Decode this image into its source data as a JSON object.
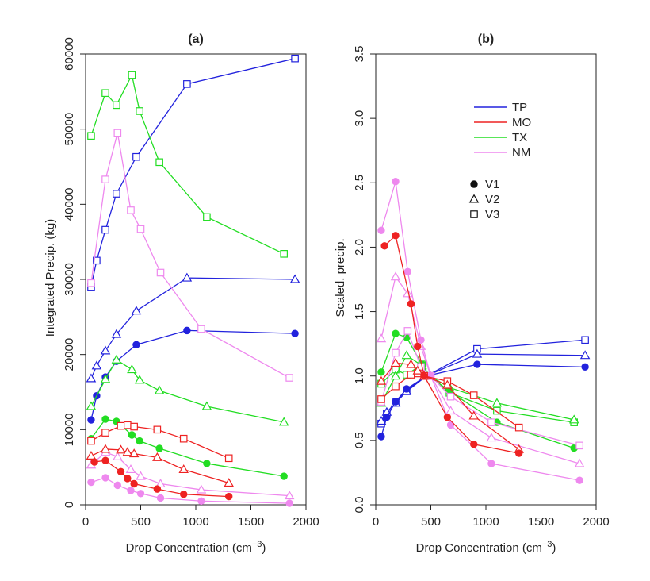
{
  "chart_data": [
    {
      "type": "line",
      "title": "(a)",
      "xlabel": "Drop Concentration (cm",
      "xlabel_sup": "−3",
      "xlabel_end": ")",
      "ylabel": "Integrated Precip. (kg)",
      "xlim": [
        0,
        2000
      ],
      "ylim": [
        0,
        60000
      ],
      "xticks": [
        0,
        500,
        1000,
        1500,
        2000
      ],
      "yticks": [
        0,
        10000,
        20000,
        30000,
        40000,
        50000,
        60000
      ],
      "grid": false,
      "series": [
        {
          "name": "TP",
          "version": "V3",
          "color": "#2222dd",
          "marker": "square",
          "x": [
            50,
            100,
            180,
            280,
            460,
            920,
            1900
          ],
          "y": [
            29000,
            32500,
            36600,
            41400,
            46300,
            56000,
            59400
          ]
        },
        {
          "name": "TP",
          "version": "V2",
          "color": "#2222dd",
          "marker": "triangle",
          "x": [
            50,
            100,
            180,
            280,
            460,
            920,
            1900
          ],
          "y": [
            16800,
            18500,
            20500,
            22700,
            25800,
            30200,
            30000
          ]
        },
        {
          "name": "TP",
          "version": "V1",
          "color": "#2222dd",
          "marker": "circle",
          "x": [
            50,
            100,
            180,
            280,
            460,
            920,
            1900
          ],
          "y": [
            11300,
            14500,
            17000,
            19100,
            21300,
            23200,
            22800
          ]
        },
        {
          "name": "TX",
          "version": "V3",
          "color": "#22dd22",
          "marker": "square",
          "x": [
            50,
            180,
            280,
            420,
            490,
            670,
            1100,
            1800
          ],
          "y": [
            49100,
            54800,
            53200,
            57200,
            52400,
            45600,
            38300,
            33400
          ]
        },
        {
          "name": "TX",
          "version": "V2",
          "color": "#22dd22",
          "marker": "triangle",
          "x": [
            50,
            180,
            280,
            420,
            490,
            670,
            1100,
            1800
          ],
          "y": [
            13100,
            16700,
            19300,
            18000,
            16600,
            15200,
            13100,
            11000
          ]
        },
        {
          "name": "TX",
          "version": "V1",
          "color": "#22dd22",
          "marker": "circle",
          "x": [
            50,
            180,
            280,
            420,
            490,
            670,
            1100,
            1800
          ],
          "y": [
            8800,
            11400,
            11100,
            9300,
            8500,
            7500,
            5500,
            3800
          ]
        },
        {
          "name": "NM",
          "version": "V3",
          "color": "#ee88ee",
          "marker": "square",
          "x": [
            50,
            180,
            290,
            410,
            500,
            680,
            1050,
            1850
          ],
          "y": [
            29500,
            43300,
            49500,
            39200,
            36700,
            30900,
            23400,
            16900
          ]
        },
        {
          "name": "NM",
          "version": "V2",
          "color": "#ee88ee",
          "marker": "triangle",
          "x": [
            50,
            180,
            290,
            410,
            500,
            680,
            1050,
            1850
          ],
          "y": [
            5300,
            7000,
            6400,
            4700,
            3800,
            2800,
            2000,
            1200
          ]
        },
        {
          "name": "NM",
          "version": "V1",
          "color": "#ee88ee",
          "marker": "circle",
          "x": [
            50,
            180,
            290,
            410,
            500,
            680,
            1050,
            1850
          ],
          "y": [
            3000,
            3600,
            2600,
            1900,
            1500,
            900,
            500,
            200
          ]
        },
        {
          "name": "MO",
          "version": "V3",
          "color": "#ee2222",
          "marker": "square",
          "x": [
            50,
            180,
            320,
            380,
            440,
            650,
            890,
            1300
          ],
          "y": [
            8500,
            9600,
            10500,
            10600,
            10400,
            10000,
            8800,
            6200
          ]
        },
        {
          "name": "MO",
          "version": "V2",
          "color": "#ee2222",
          "marker": "triangle",
          "x": [
            50,
            180,
            320,
            380,
            440,
            650,
            890,
            1300
          ],
          "y": [
            6500,
            7400,
            7300,
            7000,
            6800,
            6300,
            4700,
            2900
          ]
        },
        {
          "name": "MO",
          "version": "V1",
          "color": "#ee2222",
          "marker": "circle",
          "x": [
            80,
            180,
            320,
            380,
            440,
            650,
            890,
            1300
          ],
          "y": [
            5700,
            5900,
            4400,
            3500,
            2800,
            2100,
            1400,
            1100
          ]
        }
      ]
    },
    {
      "type": "line",
      "title": "(b)",
      "xlabel": "Drop Concentration (cm",
      "xlabel_sup": "−3",
      "xlabel_end": ")",
      "ylabel": "Scaled. precip.",
      "xlim": [
        0,
        2000
      ],
      "ylim": [
        0,
        3.5
      ],
      "xticks": [
        0,
        500,
        1000,
        1500,
        2000
      ],
      "yticks": [
        0.0,
        0.5,
        1.0,
        1.5,
        2.0,
        2.5,
        3.0,
        3.5
      ],
      "ytick_labels": [
        "0.0",
        "0.5",
        "1.0",
        "1.5",
        "2.0",
        "2.5",
        "3.0",
        "3.5"
      ],
      "grid": false,
      "legend_position": "top-center",
      "legend_regions": [
        "TP",
        "MO",
        "TX",
        "NM"
      ],
      "legend_versions": [
        "V1",
        "V2",
        "V3"
      ],
      "legend_colors": [
        "#2222dd",
        "#ee2222",
        "#22dd22",
        "#ee88ee"
      ],
      "series": [
        {
          "name": "TP",
          "version": "V3",
          "color": "#2222dd",
          "marker": "square",
          "x": [
            50,
            100,
            180,
            280,
            460,
            920,
            1900
          ],
          "y": [
            0.63,
            0.71,
            0.8,
            0.89,
            1.0,
            1.21,
            1.28
          ]
        },
        {
          "name": "TP",
          "version": "V2",
          "color": "#2222dd",
          "marker": "triangle",
          "x": [
            50,
            100,
            180,
            280,
            460,
            920,
            1900
          ],
          "y": [
            0.65,
            0.72,
            0.79,
            0.88,
            1.0,
            1.17,
            1.16
          ]
        },
        {
          "name": "TP",
          "version": "V1",
          "color": "#2222dd",
          "marker": "circle",
          "x": [
            50,
            100,
            180,
            280,
            460,
            920,
            1900
          ],
          "y": [
            0.53,
            0.68,
            0.8,
            0.9,
            1.0,
            1.09,
            1.07
          ]
        },
        {
          "name": "TX",
          "version": "V3",
          "color": "#22dd22",
          "marker": "square",
          "x": [
            50,
            180,
            280,
            420,
            490,
            670,
            1100,
            1800
          ],
          "y": [
            0.94,
            1.05,
            1.01,
            1.09,
            1.0,
            0.87,
            0.73,
            0.64
          ]
        },
        {
          "name": "TX",
          "version": "V2",
          "color": "#22dd22",
          "marker": "triangle",
          "x": [
            50,
            180,
            280,
            420,
            490,
            670,
            1100,
            1800
          ],
          "y": [
            0.79,
            1.0,
            1.16,
            1.08,
            1.0,
            0.91,
            0.79,
            0.66
          ]
        },
        {
          "name": "TX",
          "version": "V1",
          "color": "#22dd22",
          "marker": "circle",
          "x": [
            50,
            180,
            280,
            420,
            490,
            670,
            1100,
            1800
          ],
          "y": [
            1.03,
            1.33,
            1.3,
            1.09,
            1.0,
            0.88,
            0.64,
            0.44
          ]
        },
        {
          "name": "NM",
          "version": "V3",
          "color": "#ee88ee",
          "marker": "square",
          "x": [
            50,
            180,
            290,
            410,
            500,
            680,
            1050,
            1850
          ],
          "y": [
            0.8,
            1.18,
            1.35,
            1.07,
            1.0,
            0.84,
            0.64,
            0.46
          ]
        },
        {
          "name": "NM",
          "version": "V2",
          "color": "#ee88ee",
          "marker": "triangle",
          "x": [
            50,
            180,
            290,
            410,
            500,
            680,
            1050,
            1850
          ],
          "y": [
            1.29,
            1.77,
            1.64,
            1.23,
            1.0,
            0.73,
            0.52,
            0.32
          ]
        },
        {
          "name": "NM",
          "version": "V1",
          "color": "#ee88ee",
          "marker": "circle",
          "x": [
            50,
            180,
            290,
            410,
            500,
            680,
            1050,
            1850
          ],
          "y": [
            2.13,
            2.51,
            1.81,
            1.28,
            1.0,
            0.62,
            0.32,
            0.19
          ]
        },
        {
          "name": "MO",
          "version": "V3",
          "color": "#ee2222",
          "marker": "square",
          "x": [
            50,
            180,
            320,
            380,
            440,
            650,
            890,
            1300
          ],
          "y": [
            0.82,
            0.92,
            1.01,
            1.02,
            1.0,
            0.96,
            0.85,
            0.6
          ]
        },
        {
          "name": "MO",
          "version": "V2",
          "color": "#ee2222",
          "marker": "triangle",
          "x": [
            50,
            180,
            320,
            380,
            440,
            650,
            890,
            1300
          ],
          "y": [
            0.96,
            1.1,
            1.09,
            1.04,
            1.0,
            0.93,
            0.69,
            0.43
          ]
        },
        {
          "name": "MO",
          "version": "V1",
          "color": "#ee2222",
          "marker": "circle",
          "x": [
            80,
            180,
            320,
            380,
            440,
            650,
            890,
            1300
          ],
          "y": [
            2.01,
            2.09,
            1.56,
            1.23,
            1.0,
            0.68,
            0.47,
            0.4
          ]
        }
      ]
    }
  ]
}
